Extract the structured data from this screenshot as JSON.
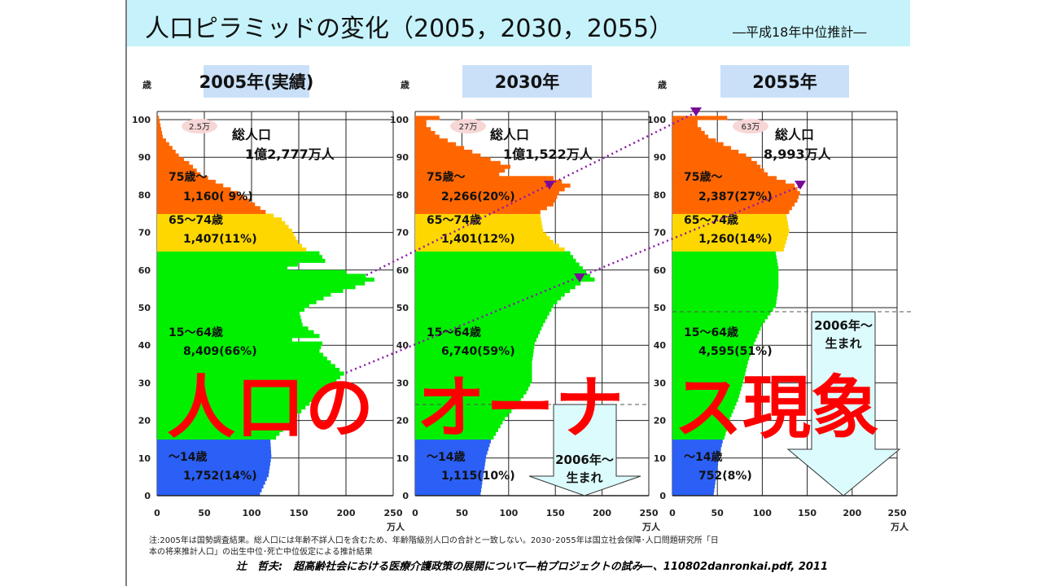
{
  "title": "人口ピラミッドの変化（2005，2030，2055）",
  "subtitle": "―平成18年中位推計―",
  "overlay_text": "人口のオーナス現象",
  "arrow_label": [
    "2006年～",
    "生まれ"
  ],
  "footnote": [
    "注:2005年は国勢調査結果。総人口には年齢不詳人口を含むため、年齢階級別人口の合計と一致しない。2030･2055年は国立社会保障･人口問題研究所「日",
    "本の将来推計人口」の出生中位･死亡中位仮定による推計結果"
  ],
  "citation": "辻　哲夫:　超高齢社会における医療介護政策の展開について―柏プロジェクトの試み―、110802danronkai.pdf, 2011",
  "colors": {
    "age_0_14": "#2b5ff5",
    "age_15_64": "#00f000",
    "age_65_74": "#ffd700",
    "age_75_plus": "#ff6600",
    "overlay": "#ff0000",
    "trend_line": "#8a1aa8"
  },
  "panels": [
    {
      "year_label": "2005年(実績)",
      "total_label": "総人口",
      "total_value": "1億2,777万人",
      "bubble": "2.5万",
      "groups": [
        {
          "label": "75歳～",
          "value": "1,160( 9%)"
        },
        {
          "label": "65～74歳",
          "value": "1,407(11%)"
        },
        {
          "label": "15～64歳",
          "value": "8,409(66%)"
        },
        {
          "label": "～14歳",
          "value": "1,752(14%)"
        }
      ]
    },
    {
      "year_label": "2030年",
      "total_label": "総人口",
      "total_value": "1億1,522万人",
      "bubble": "27万",
      "groups": [
        {
          "label": "75歳～",
          "value": "2,266(20%)"
        },
        {
          "label": "65～74歳",
          "value": "1,401(12%)"
        },
        {
          "label": "15～64歳",
          "value": "6,740(59%)"
        },
        {
          "label": "～14歳",
          "value": "1,115(10%)"
        }
      ]
    },
    {
      "year_label": "2055年",
      "total_label": "総人口",
      "total_value": "8,993万人",
      "bubble": "63万",
      "groups": [
        {
          "label": "75歳～",
          "value": "2,387(27%)"
        },
        {
          "label": "65～74歳",
          "value": "1,260(14%)"
        },
        {
          "label": "15～64歳",
          "value": "4,595(51%)"
        },
        {
          "label": "～14歳",
          "value": "752(8%)"
        }
      ]
    }
  ],
  "chart_data": [
    {
      "type": "bar",
      "orientation": "horizontal",
      "title": "2005年(実績)",
      "xlabel": "万人",
      "ylabel": "歳",
      "xlim": [
        0,
        250
      ],
      "ylim": [
        0,
        100
      ],
      "xticks": [
        0,
        50,
        100,
        150,
        200,
        250
      ],
      "yticks": [
        0,
        10,
        20,
        30,
        40,
        50,
        60,
        70,
        80,
        90,
        100
      ],
      "grid": true,
      "age_value_keypoints": [
        [
          0,
          109
        ],
        [
          5,
          118
        ],
        [
          10,
          121
        ],
        [
          14,
          120
        ],
        [
          15,
          126
        ],
        [
          20,
          144
        ],
        [
          25,
          166
        ],
        [
          30,
          190
        ],
        [
          32,
          198
        ],
        [
          35,
          184
        ],
        [
          38,
          172
        ],
        [
          40,
          175
        ],
        [
          41,
          143
        ],
        [
          42,
          172
        ],
        [
          45,
          154
        ],
        [
          48,
          151
        ],
        [
          50,
          161
        ],
        [
          53,
          184
        ],
        [
          55,
          210
        ],
        [
          57,
          230
        ],
        [
          58,
          221
        ],
        [
          59,
          200
        ],
        [
          60,
          138
        ],
        [
          61,
          149
        ],
        [
          62,
          178
        ],
        [
          64,
          172
        ],
        [
          65,
          158
        ],
        [
          67,
          149
        ],
        [
          70,
          143
        ],
        [
          73,
          132
        ],
        [
          75,
          115
        ],
        [
          78,
          98
        ],
        [
          80,
          86
        ],
        [
          85,
          46
        ],
        [
          88,
          34
        ],
        [
          90,
          23
        ],
        [
          95,
          6
        ],
        [
          100,
          2
        ]
      ]
    },
    {
      "type": "bar",
      "orientation": "horizontal",
      "title": "2030年",
      "xlabel": "万人",
      "ylabel": "歳",
      "xlim": [
        0,
        250
      ],
      "ylim": [
        0,
        100
      ],
      "xticks": [
        0,
        50,
        100,
        150,
        200,
        250
      ],
      "yticks": [
        0,
        10,
        20,
        30,
        40,
        50,
        60,
        70,
        80,
        90,
        100
      ],
      "grid": true,
      "age_value_keypoints": [
        [
          0,
          70
        ],
        [
          5,
          73
        ],
        [
          10,
          76
        ],
        [
          14,
          81
        ],
        [
          15,
          84
        ],
        [
          20,
          96
        ],
        [
          24,
          110
        ],
        [
          27,
          119
        ],
        [
          30,
          125
        ],
        [
          35,
          125
        ],
        [
          40,
          128
        ],
        [
          45,
          137
        ],
        [
          50,
          148
        ],
        [
          53,
          160
        ],
        [
          56,
          177
        ],
        [
          57,
          192
        ],
        [
          59,
          183
        ],
        [
          62,
          172
        ],
        [
          64,
          166
        ],
        [
          65,
          160
        ],
        [
          67,
          148
        ],
        [
          70,
          137
        ],
        [
          74,
          134
        ],
        [
          75,
          134
        ],
        [
          77,
          148
        ],
        [
          80,
          154
        ],
        [
          82,
          166
        ],
        [
          84,
          148
        ],
        [
          85,
          90
        ],
        [
          87,
          102
        ],
        [
          90,
          70
        ],
        [
          95,
          26
        ],
        [
          98,
          12
        ],
        [
          99,
          12
        ],
        [
          100,
          26
        ]
      ]
    },
    {
      "type": "bar",
      "orientation": "horizontal",
      "title": "2055年",
      "xlabel": "万人",
      "ylabel": "歳",
      "xlim": [
        0,
        250
      ],
      "ylim": [
        0,
        100
      ],
      "xticks": [
        0,
        50,
        100,
        150,
        200,
        250
      ],
      "yticks": [
        0,
        10,
        20,
        30,
        40,
        50,
        60,
        70,
        80,
        90,
        100
      ],
      "grid": true,
      "age_value_keypoints": [
        [
          0,
          46
        ],
        [
          5,
          49
        ],
        [
          10,
          52
        ],
        [
          14,
          56
        ],
        [
          15,
          58
        ],
        [
          20,
          64
        ],
        [
          25,
          73
        ],
        [
          30,
          79
        ],
        [
          35,
          84
        ],
        [
          40,
          91
        ],
        [
          45,
          100
        ],
        [
          48,
          109
        ],
        [
          50,
          115
        ],
        [
          55,
          118
        ],
        [
          60,
          118
        ],
        [
          64,
          115
        ],
        [
          65,
          124
        ],
        [
          70,
          130
        ],
        [
          74,
          127
        ],
        [
          75,
          130
        ],
        [
          78,
          139
        ],
        [
          80,
          142
        ],
        [
          82,
          136
        ],
        [
          85,
          106
        ],
        [
          88,
          94
        ],
        [
          90,
          82
        ],
        [
          95,
          40
        ],
        [
          98,
          28
        ],
        [
          99,
          28
        ],
        [
          100,
          61
        ]
      ]
    }
  ],
  "axis": {
    "age_unit": "歳",
    "value_unit": "万人"
  }
}
